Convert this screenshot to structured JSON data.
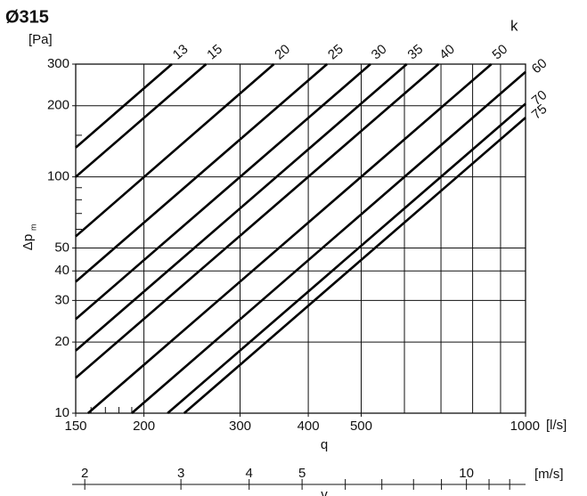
{
  "chart_data": {
    "type": "line",
    "title": "Ø315",
    "ylabel": "Δp",
    "ylabel_sub": "m",
    "yunit": "[Pa]",
    "series_label": "k",
    "xlabel": "q",
    "xunit": "[l/s]",
    "log_x": true,
    "log_y": true,
    "xlim": [
      150,
      1000
    ],
    "xticks": [
      150,
      200,
      300,
      400,
      500,
      1000
    ],
    "xgrid": [
      200,
      300,
      400,
      500,
      600,
      700,
      800,
      900
    ],
    "xminor": [
      160,
      170,
      180,
      190
    ],
    "ylim": [
      10,
      300
    ],
    "yticks": [
      10,
      20,
      30,
      40,
      50,
      100,
      200,
      300
    ],
    "ygrid": [
      20,
      30,
      40,
      50,
      100,
      200
    ],
    "yminor": [
      60,
      70,
      80,
      90,
      150
    ],
    "x2label": "v",
    "x2unit": "[m/s]",
    "x2lim": [
      1.925,
      12.83
    ],
    "x2ticks": [
      2,
      3,
      4,
      5,
      10
    ],
    "x2minor": [
      6,
      7,
      8,
      9,
      11,
      12
    ],
    "color": "#000000",
    "series": [
      {
        "name": "13",
        "x": [
          150,
          225
        ],
        "values": [
          133,
          300
        ]
      },
      {
        "name": "15",
        "x": [
          150,
          260
        ],
        "values": [
          100,
          300
        ]
      },
      {
        "name": "20",
        "x": [
          150,
          346
        ],
        "values": [
          56,
          300
        ]
      },
      {
        "name": "25",
        "x": [
          150,
          433
        ],
        "values": [
          36,
          300
        ]
      },
      {
        "name": "30",
        "x": [
          150,
          520
        ],
        "values": [
          25,
          300
        ]
      },
      {
        "name": "35",
        "x": [
          150,
          606
        ],
        "values": [
          18.4,
          300
        ]
      },
      {
        "name": "40",
        "x": [
          150,
          693
        ],
        "values": [
          14.1,
          300
        ]
      },
      {
        "name": "50",
        "x": [
          158,
          866
        ],
        "values": [
          10,
          300
        ]
      },
      {
        "name": "60",
        "x": [
          190,
          1000
        ],
        "values": [
          10,
          278
        ]
      },
      {
        "name": "70",
        "x": [
          221,
          1000
        ],
        "values": [
          10,
          204
        ]
      },
      {
        "name": "75",
        "x": [
          237,
          1000
        ],
        "values": [
          10,
          178
        ]
      }
    ]
  }
}
